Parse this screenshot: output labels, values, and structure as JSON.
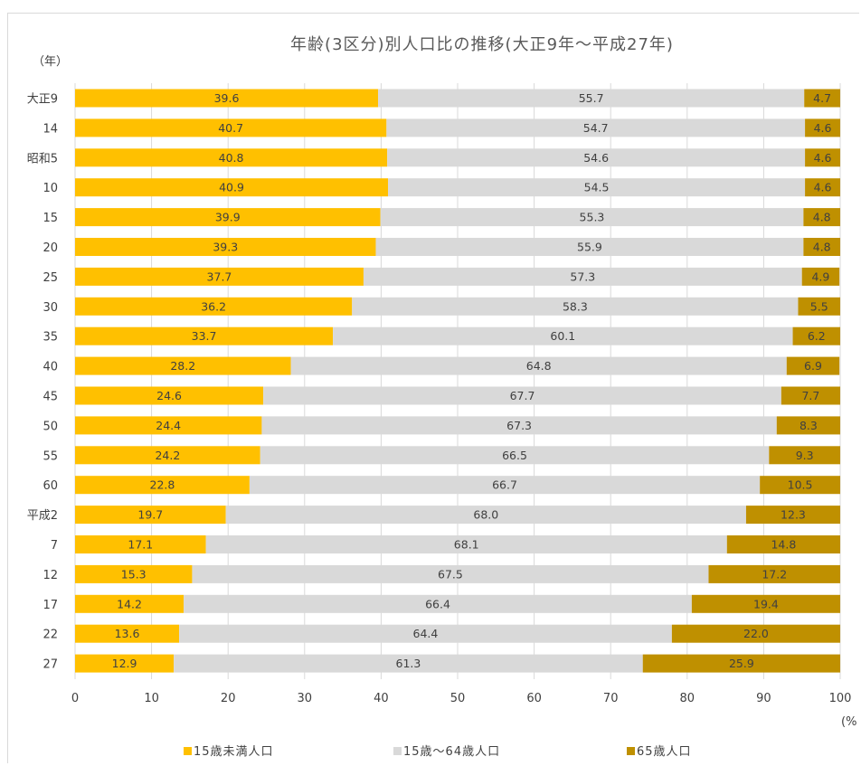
{
  "chart_data": {
    "type": "bar",
    "orientation": "horizontal",
    "stacked": true,
    "title": "年齢(3区分)別人口比の推移(大正9年～平成27年)",
    "y_unit_label": "（年）",
    "x_unit_label": "(%",
    "xlim": [
      0,
      100
    ],
    "x_ticks": [
      "0",
      "10",
      "20",
      "30",
      "40",
      "50",
      "60",
      "70",
      "80",
      "90",
      "100"
    ],
    "categories": [
      "大正9",
      "14",
      "昭和5",
      "10",
      "15",
      "20",
      "25",
      "30",
      "35",
      "40",
      "45",
      "50",
      "55",
      "60",
      "平成2",
      "7",
      "12",
      "17",
      "22",
      "27"
    ],
    "series": [
      {
        "name": "15歳未満人口",
        "color": "#ffc000",
        "values": [
          39.6,
          40.7,
          40.8,
          40.9,
          39.9,
          39.3,
          37.7,
          36.2,
          33.7,
          28.2,
          24.6,
          24.4,
          24.2,
          22.8,
          19.7,
          17.1,
          15.3,
          14.2,
          13.6,
          12.9
        ],
        "labels": [
          "39.6",
          "40.7",
          "40.8",
          "40.9",
          "39.9",
          "39.3",
          "37.7",
          "36.2",
          "33.7",
          "28.2",
          "24.6",
          "24.4",
          "24.2",
          "22.8",
          "19.7",
          "17.1",
          "15.3",
          "14.2",
          "13.6",
          "12.9"
        ]
      },
      {
        "name": "15歳～64歳人口",
        "color": "#d9d9d9",
        "values": [
          55.7,
          54.7,
          54.6,
          54.5,
          55.3,
          55.9,
          57.3,
          58.3,
          60.1,
          64.8,
          67.7,
          67.3,
          66.5,
          66.7,
          68.0,
          68.1,
          67.5,
          66.4,
          64.4,
          61.3
        ],
        "labels": [
          "55.7",
          "54.7",
          "54.6",
          "54.5",
          "55.3",
          "55.9",
          "57.3",
          "58.3",
          "60.1",
          "64.8",
          "67.7",
          "67.3",
          "66.5",
          "66.7",
          "68.0",
          "68.1",
          "67.5",
          "66.4",
          "64.4",
          "61.3"
        ]
      },
      {
        "name": "65歳人口",
        "color": "#bf9000",
        "values": [
          4.7,
          4.6,
          4.6,
          4.6,
          4.8,
          4.8,
          4.9,
          5.5,
          6.2,
          6.9,
          7.7,
          8.3,
          9.3,
          10.5,
          12.3,
          14.8,
          17.2,
          19.4,
          22.0,
          25.9
        ],
        "labels": [
          "4.7",
          "4.6",
          "4.6",
          "4.6",
          "4.8",
          "4.8",
          "4.9",
          "5.5",
          "6.2",
          "6.9",
          "7.7",
          "8.3",
          "9.3",
          "10.5",
          "12.3",
          "14.8",
          "17.2",
          "19.4",
          "22.0",
          "25.9"
        ]
      }
    ],
    "grid": true,
    "gridline_color": "#d9d9d9",
    "legend_position": "bottom"
  }
}
